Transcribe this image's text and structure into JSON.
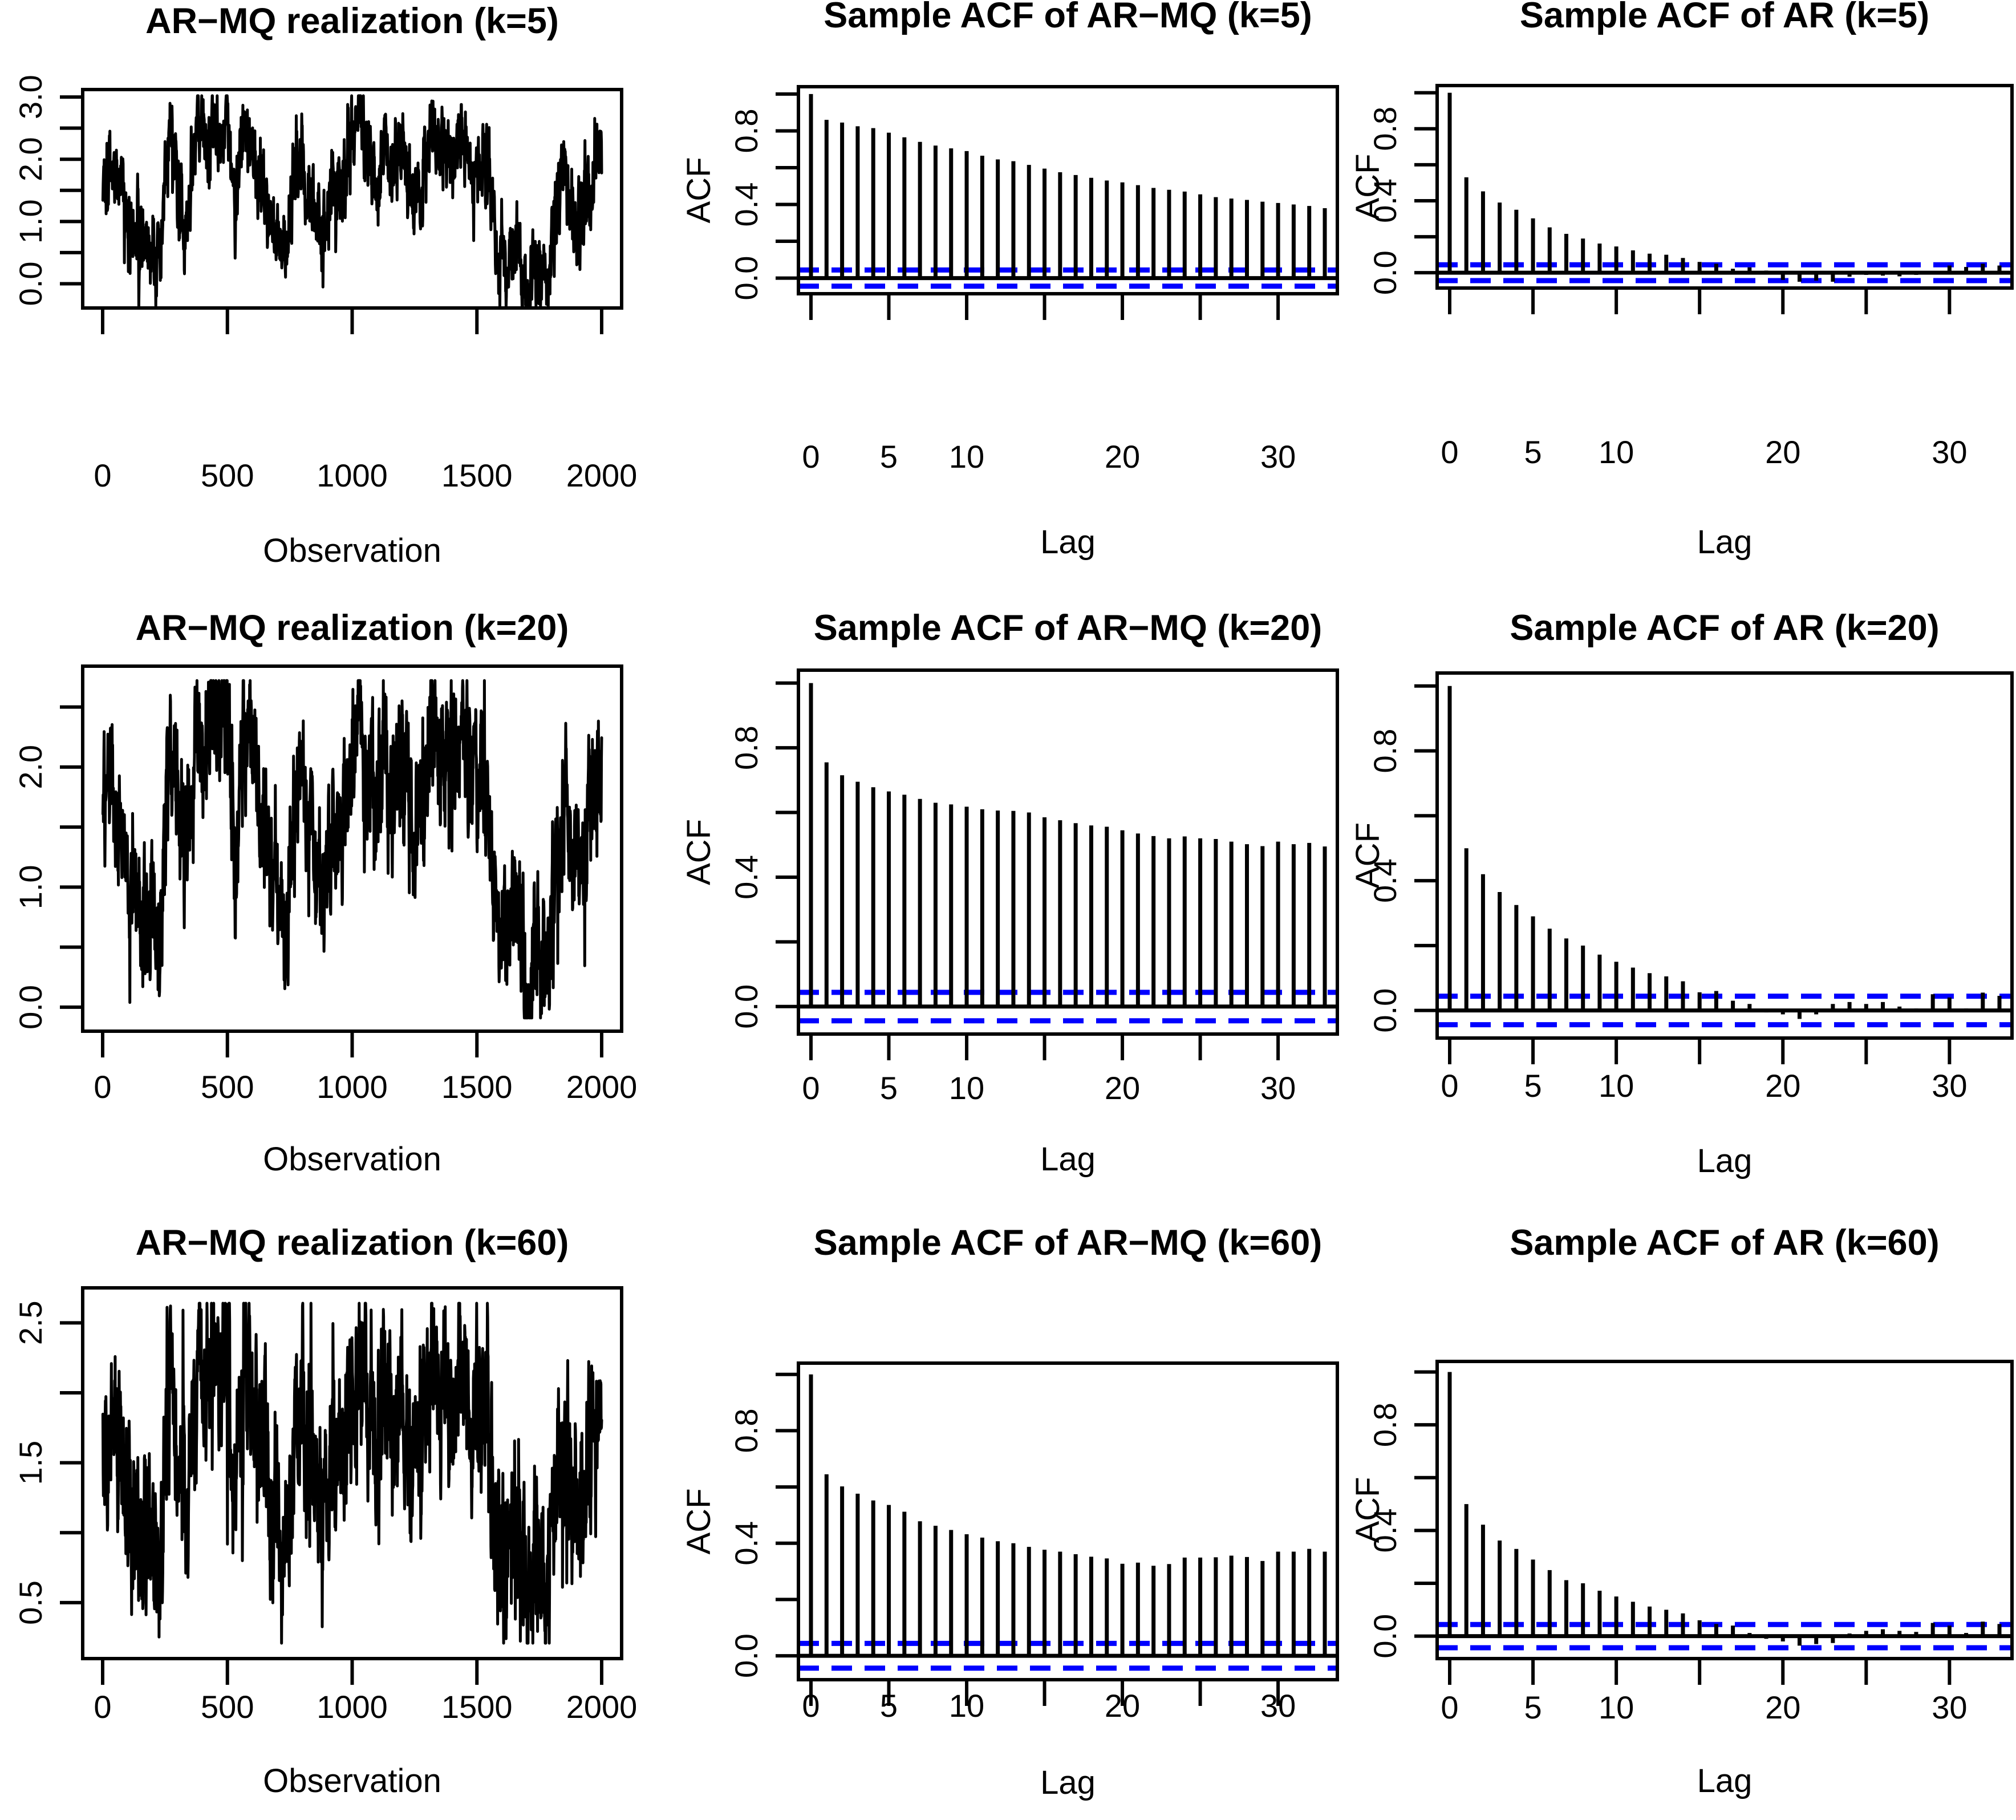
{
  "figure": {
    "background": "#ffffff",
    "axis_color": "#000000",
    "series_color": "#000000",
    "conf_color": "#0000ff"
  },
  "chart_data": [
    {
      "id": "ts-armq-k5",
      "type": "line",
      "title": "AR−MQ realization (k=5)",
      "xlabel": "Observation",
      "x_ticks": [
        0,
        500,
        1000,
        1500,
        2000
      ],
      "x_tick_labels": [
        "0",
        "500",
        "1000",
        "1500",
        "2000"
      ],
      "y_ticks": [
        0,
        0.5,
        1,
        1.5,
        2,
        2.5,
        3
      ],
      "y_tick_labels": [
        "0.0",
        "",
        "1.0",
        "",
        "2.0",
        "",
        "3.0"
      ],
      "xlim": [
        -80,
        2080
      ],
      "ylim": [
        -0.39,
        3.12
      ],
      "n": 2000,
      "data_range": [
        -0.36,
        3.02
      ],
      "noise_sd": 0.3,
      "trend_x": [
        0,
        40,
        80,
        120,
        160,
        200,
        230,
        270,
        300,
        340,
        380,
        410,
        440,
        470,
        500,
        530,
        560,
        590,
        620,
        660,
        700,
        730,
        760,
        800,
        840,
        880,
        920,
        960,
        1000,
        1030,
        1060,
        1100,
        1130,
        1160,
        1200,
        1240,
        1280,
        1320,
        1360,
        1400,
        1440,
        1480,
        1520,
        1550,
        1580,
        1620,
        1660,
        1700,
        1740,
        1780,
        1820,
        1860,
        1900,
        1940,
        1970,
        2000
      ],
      "trend_y": [
        1.75,
        1.9,
        1.45,
        0.8,
        0.45,
        0.6,
        0.3,
        2.55,
        1.6,
        1.2,
        2.7,
        2.1,
        2.75,
        2.4,
        2.95,
        1.1,
        2.4,
        2.45,
        1.9,
        1.35,
        0.8,
        0.3,
        1.5,
        2.1,
        1.35,
        0.75,
        1.7,
        1.45,
        2.3,
        2.9,
        2.1,
        1.55,
        2.45,
        1.8,
        2.2,
        1.35,
        1.75,
        2.6,
        2.15,
        1.95,
        2.5,
        1.85,
        2.0,
        1.6,
        0.6,
        0.15,
        0.8,
        -0.25,
        0.5,
        -0.1,
        1.3,
        1.65,
        0.85,
        1.4,
        1.9,
        2.1
      ]
    },
    {
      "id": "acf-armq-k5",
      "type": "bar",
      "title": "Sample ACF of AR−MQ (k=5)",
      "xlabel": "Lag",
      "ylabel": "ACF",
      "x_ticks": [
        0,
        5,
        10,
        15,
        20,
        25,
        30
      ],
      "x_tick_labels": [
        "0",
        "5",
        "10",
        "",
        "20",
        "",
        "30"
      ],
      "y_ticks": [
        0,
        0.2,
        0.4,
        0.6,
        0.8,
        1.0
      ],
      "y_tick_labels": [
        "0.0",
        "",
        "0.4",
        "",
        "0.8",
        ""
      ],
      "ylim": [
        -0.085,
        1.04
      ],
      "conf_band": 0.044,
      "values": [
        1.0,
        0.86,
        0.845,
        0.825,
        0.815,
        0.79,
        0.765,
        0.74,
        0.72,
        0.705,
        0.69,
        0.665,
        0.645,
        0.635,
        0.615,
        0.595,
        0.575,
        0.56,
        0.545,
        0.53,
        0.52,
        0.505,
        0.49,
        0.48,
        0.47,
        0.455,
        0.44,
        0.432,
        0.425,
        0.415,
        0.408,
        0.4,
        0.392,
        0.38
      ]
    },
    {
      "id": "acf-ar-k5",
      "type": "bar",
      "title": "Sample ACF of AR (k=5)",
      "xlabel": "Lag",
      "ylabel": "ACF",
      "x_ticks": [
        0,
        5,
        10,
        15,
        20,
        25,
        30
      ],
      "x_tick_labels": [
        "0",
        "5",
        "10",
        "",
        "20",
        "",
        "30"
      ],
      "y_ticks": [
        0,
        0.2,
        0.4,
        0.6,
        0.8,
        1.0
      ],
      "y_tick_labels": [
        "0.0",
        "",
        "0.4",
        "",
        "0.8",
        ""
      ],
      "ylim": [
        -0.085,
        1.04
      ],
      "conf_band": 0.044,
      "values": [
        1.0,
        0.53,
        0.452,
        0.39,
        0.35,
        0.302,
        0.252,
        0.216,
        0.19,
        0.162,
        0.146,
        0.124,
        0.106,
        0.1,
        0.082,
        0.06,
        0.05,
        0.022,
        0.03,
        0.012,
        -0.04,
        -0.05,
        -0.044,
        -0.05,
        -0.022,
        -0.012,
        -0.016,
        -0.02,
        -0.012,
        0.006,
        0.04,
        0.032,
        0.05,
        0.04
      ]
    },
    {
      "id": "ts-armq-k20",
      "type": "line",
      "title": "AR−MQ realization (k=20)",
      "xlabel": "Observation",
      "x_ticks": [
        0,
        500,
        1000,
        1500,
        2000
      ],
      "x_tick_labels": [
        "0",
        "500",
        "1000",
        "1500",
        "2000"
      ],
      "y_ticks": [
        0,
        0.5,
        1,
        1.5,
        2,
        2.5
      ],
      "y_tick_labels": [
        "0.0",
        "",
        "1.0",
        "",
        "2.0",
        ""
      ],
      "xlim": [
        -80,
        2080
      ],
      "ylim": [
        -0.2,
        2.84
      ],
      "n": 2000,
      "data_range": [
        -0.09,
        2.72
      ],
      "noise_sd": 0.27,
      "trend_x": [
        0,
        40,
        80,
        120,
        160,
        200,
        230,
        270,
        300,
        340,
        380,
        410,
        440,
        470,
        500,
        530,
        560,
        590,
        620,
        660,
        700,
        730,
        760,
        800,
        840,
        880,
        920,
        960,
        1000,
        1030,
        1060,
        1100,
        1130,
        1160,
        1200,
        1240,
        1280,
        1320,
        1360,
        1400,
        1440,
        1480,
        1520,
        1550,
        1580,
        1620,
        1660,
        1700,
        1740,
        1780,
        1820,
        1860,
        1900,
        1940,
        1970,
        2000
      ],
      "trend_y": [
        1.71,
        1.83,
        1.46,
        0.93,
        0.64,
        0.76,
        0.52,
        2.36,
        1.58,
        1.25,
        2.48,
        1.99,
        2.53,
        2.24,
        2.69,
        1.17,
        2.24,
        2.28,
        1.83,
        1.38,
        0.93,
        0.52,
        1.5,
        1.99,
        1.38,
        0.89,
        1.66,
        1.46,
        2.16,
        2.65,
        1.99,
        1.54,
        2.28,
        1.75,
        2.07,
        1.38,
        1.71,
        2.4,
        2.03,
        1.87,
        2.32,
        1.79,
        1.91,
        1.58,
        0.76,
        0.39,
        0.93,
        0.07,
        0.68,
        0.19,
        1.34,
        1.62,
        0.97,
        1.42,
        1.83,
        1.99
      ]
    },
    {
      "id": "acf-armq-k20",
      "type": "bar",
      "title": "Sample ACF of AR−MQ (k=20)",
      "xlabel": "Lag",
      "ylabel": "ACF",
      "x_ticks": [
        0,
        5,
        10,
        15,
        20,
        25,
        30
      ],
      "x_tick_labels": [
        "0",
        "5",
        "10",
        "",
        "20",
        "",
        "30"
      ],
      "y_ticks": [
        0,
        0.2,
        0.4,
        0.6,
        0.8,
        1.0
      ],
      "y_tick_labels": [
        "0.0",
        "",
        "0.4",
        "",
        "0.8",
        ""
      ],
      "ylim": [
        -0.085,
        1.04
      ],
      "conf_band": 0.044,
      "values": [
        1.0,
        0.755,
        0.715,
        0.695,
        0.678,
        0.665,
        0.655,
        0.642,
        0.63,
        0.625,
        0.618,
        0.61,
        0.606,
        0.605,
        0.6,
        0.585,
        0.576,
        0.567,
        0.56,
        0.556,
        0.545,
        0.535,
        0.527,
        0.52,
        0.526,
        0.52,
        0.518,
        0.51,
        0.502,
        0.496,
        0.51,
        0.502,
        0.506,
        0.495
      ]
    },
    {
      "id": "acf-ar-k20",
      "type": "bar",
      "title": "Sample ACF of AR (k=20)",
      "xlabel": "Lag",
      "ylabel": "ACF",
      "x_ticks": [
        0,
        5,
        10,
        15,
        20,
        25,
        30
      ],
      "x_tick_labels": [
        "0",
        "5",
        "10",
        "",
        "20",
        "",
        "30"
      ],
      "y_ticks": [
        0,
        0.2,
        0.4,
        0.6,
        0.8,
        1.0
      ],
      "y_tick_labels": [
        "0.0",
        "",
        "0.4",
        "",
        "0.8",
        ""
      ],
      "ylim": [
        -0.085,
        1.04
      ],
      "conf_band": 0.044,
      "values": [
        1.0,
        0.5,
        0.42,
        0.365,
        0.325,
        0.29,
        0.252,
        0.222,
        0.2,
        0.172,
        0.15,
        0.132,
        0.115,
        0.105,
        0.09,
        0.056,
        0.06,
        0.03,
        0.02,
        -0.006,
        -0.012,
        -0.026,
        -0.012,
        0.02,
        0.026,
        0.02,
        0.026,
        0.012,
        0.006,
        0.05,
        0.04,
        0.006,
        0.055,
        0.045
      ]
    },
    {
      "id": "ts-armq-k60",
      "type": "line",
      "title": "AR−MQ realization (k=60)",
      "xlabel": "Observation",
      "x_ticks": [
        0,
        500,
        1000,
        1500,
        2000
      ],
      "x_tick_labels": [
        "0",
        "500",
        "1000",
        "1500",
        "2000"
      ],
      "y_ticks": [
        0.5,
        1,
        1.5,
        2,
        2.5
      ],
      "y_tick_labels": [
        "0.5",
        "",
        "1.5",
        "",
        "2.5"
      ],
      "xlim": [
        -80,
        2080
      ],
      "ylim": [
        0.1,
        2.75
      ],
      "n": 2000,
      "data_range": [
        0.21,
        2.64
      ],
      "noise_sd": 0.29,
      "trend_x": [
        0,
        40,
        80,
        120,
        160,
        200,
        230,
        270,
        300,
        340,
        380,
        410,
        440,
        470,
        500,
        530,
        560,
        590,
        620,
        660,
        700,
        730,
        760,
        800,
        840,
        880,
        920,
        960,
        1000,
        1030,
        1060,
        1100,
        1130,
        1160,
        1200,
        1240,
        1280,
        1320,
        1360,
        1400,
        1440,
        1480,
        1520,
        1550,
        1580,
        1620,
        1660,
        1700,
        1740,
        1780,
        1820,
        1860,
        1900,
        1940,
        1970,
        2000
      ],
      "trend_y": [
        1.66,
        1.75,
        1.47,
        1.07,
        0.85,
        0.94,
        0.76,
        2.15,
        1.56,
        1.31,
        2.24,
        1.87,
        2.28,
        2.06,
        2.4,
        1.25,
        2.06,
        2.09,
        1.75,
        1.41,
        1.07,
        0.76,
        1.5,
        1.87,
        1.41,
        1.04,
        1.62,
        1.47,
        2.0,
        2.37,
        1.87,
        1.53,
        2.09,
        1.69,
        1.93,
        1.41,
        1.66,
        2.18,
        1.9,
        1.78,
        2.12,
        1.72,
        1.81,
        1.56,
        0.94,
        0.66,
        1.07,
        0.42,
        0.88,
        0.51,
        1.38,
        1.59,
        1.1,
        1.44,
        1.75,
        1.87
      ]
    },
    {
      "id": "acf-armq-k60",
      "type": "bar",
      "title": "Sample ACF of AR−MQ (k=60)",
      "xlabel": "Lag",
      "ylabel": "ACF",
      "x_ticks": [
        0,
        5,
        10,
        15,
        20,
        25,
        30
      ],
      "x_tick_labels": [
        "0",
        "5",
        "10",
        "",
        "20",
        "",
        "30"
      ],
      "y_ticks": [
        0,
        0.2,
        0.4,
        0.6,
        0.8,
        1.0
      ],
      "y_tick_labels": [
        "0.0",
        "",
        "0.4",
        "",
        "0.8",
        ""
      ],
      "ylim": [
        -0.085,
        1.04
      ],
      "conf_band": 0.044,
      "values": [
        1.0,
        0.645,
        0.602,
        0.576,
        0.552,
        0.536,
        0.512,
        0.478,
        0.462,
        0.447,
        0.432,
        0.42,
        0.407,
        0.4,
        0.387,
        0.377,
        0.37,
        0.361,
        0.352,
        0.346,
        0.327,
        0.331,
        0.32,
        0.326,
        0.349,
        0.349,
        0.35,
        0.356,
        0.351,
        0.337,
        0.37,
        0.37,
        0.38,
        0.37
      ]
    },
    {
      "id": "acf-ar-k60",
      "type": "bar",
      "title": "Sample ACF of AR (k=60)",
      "xlabel": "Lag",
      "ylabel": "ACF",
      "x_ticks": [
        0,
        5,
        10,
        15,
        20,
        25,
        30
      ],
      "x_tick_labels": [
        "0",
        "5",
        "10",
        "",
        "20",
        "",
        "30"
      ],
      "y_ticks": [
        0,
        0.2,
        0.4,
        0.6,
        0.8,
        1.0
      ],
      "y_tick_labels": [
        "0.0",
        "",
        "0.4",
        "",
        "0.8",
        ""
      ],
      "ylim": [
        -0.085,
        1.04
      ],
      "conf_band": 0.044,
      "values": [
        1.0,
        0.5,
        0.422,
        0.362,
        0.33,
        0.29,
        0.25,
        0.212,
        0.2,
        0.172,
        0.15,
        0.13,
        0.112,
        0.1,
        0.086,
        0.06,
        0.046,
        0.04,
        0.012,
        -0.01,
        -0.02,
        -0.036,
        -0.03,
        -0.026,
        0.01,
        0.02,
        0.026,
        0.02,
        0.016,
        0.05,
        0.04,
        0.012,
        0.055,
        0.046
      ]
    }
  ]
}
